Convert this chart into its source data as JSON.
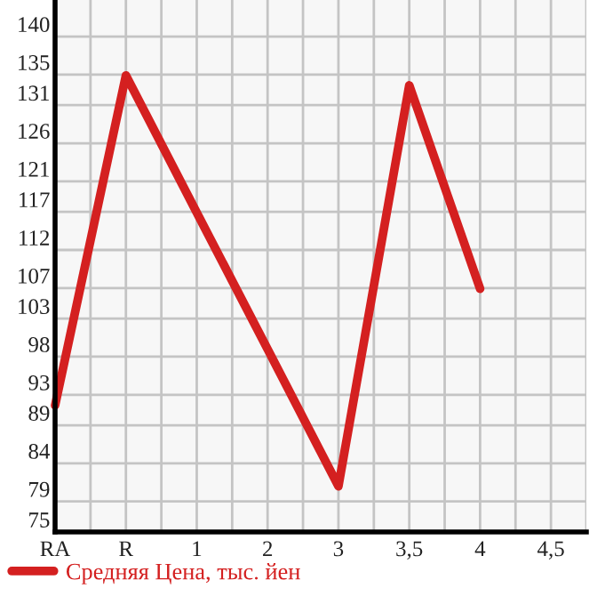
{
  "chart_data": {
    "type": "line",
    "categories": [
      "RA",
      "R",
      "1",
      "2",
      "3",
      "3,5",
      "4",
      "4,5"
    ],
    "series": [
      {
        "name": "Средняя Цена, тыс. йен",
        "color": "#d42020",
        "values": [
          91.6,
          134.9,
          116.9,
          99.0,
          81.0,
          133.6,
          106.9,
          null
        ]
      }
    ],
    "ylim": [
      75,
      144.8
    ],
    "yticks": [
      75,
      79,
      84,
      89,
      93,
      98,
      103,
      107,
      112,
      117,
      121,
      126,
      131,
      135,
      140
    ],
    "grid": true,
    "legend": "bottom left",
    "marker": "none",
    "line_style": "solid"
  }
}
